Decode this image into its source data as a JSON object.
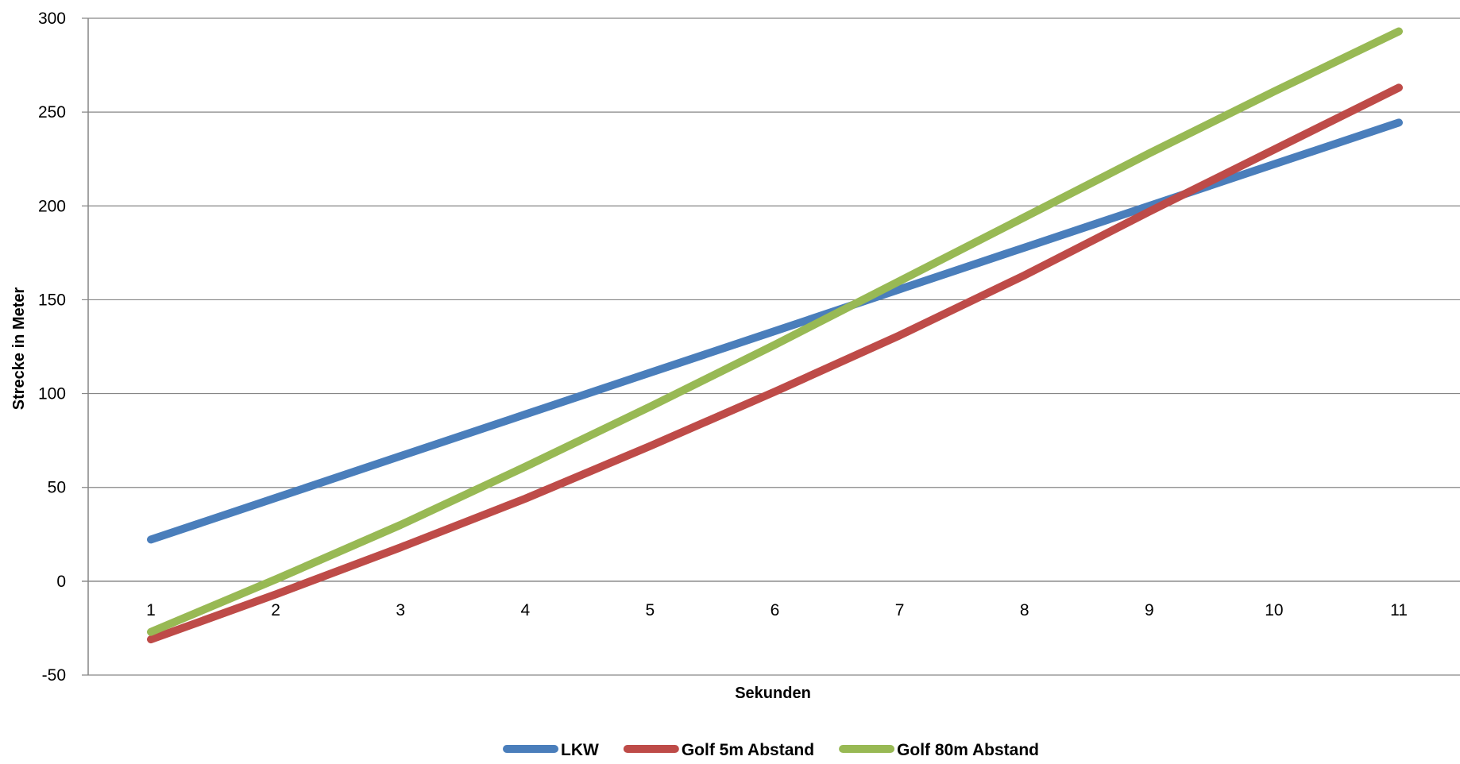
{
  "chart_data": {
    "type": "line",
    "title": "",
    "xlabel": "Sekunden",
    "ylabel": "Strecke in Meter",
    "categories": [
      "1",
      "2",
      "3",
      "4",
      "5",
      "6",
      "7",
      "8",
      "9",
      "10",
      "11"
    ],
    "ylim": [
      -50,
      300
    ],
    "yticks": [
      "-50",
      "0",
      "50",
      "100",
      "150",
      "200",
      "250",
      "300"
    ],
    "grid": true,
    "legend_position": "bottom",
    "series": [
      {
        "name": "LKW",
        "color": "#4a7ebb",
        "values": [
          22.2,
          44.4,
          66.7,
          88.9,
          111.1,
          133.3,
          155.6,
          177.8,
          200.0,
          222.2,
          244.4
        ]
      },
      {
        "name": "Golf 5m Abstand",
        "color": "#be4b48",
        "values": [
          -31,
          -7,
          18,
          44,
          72,
          101,
          131,
          163,
          197,
          230,
          263
        ]
      },
      {
        "name": "Golf 80m Abstand",
        "color": "#98b954",
        "values": [
          -27,
          1,
          30,
          61,
          93,
          126,
          160,
          194,
          228,
          261,
          293
        ]
      }
    ]
  }
}
